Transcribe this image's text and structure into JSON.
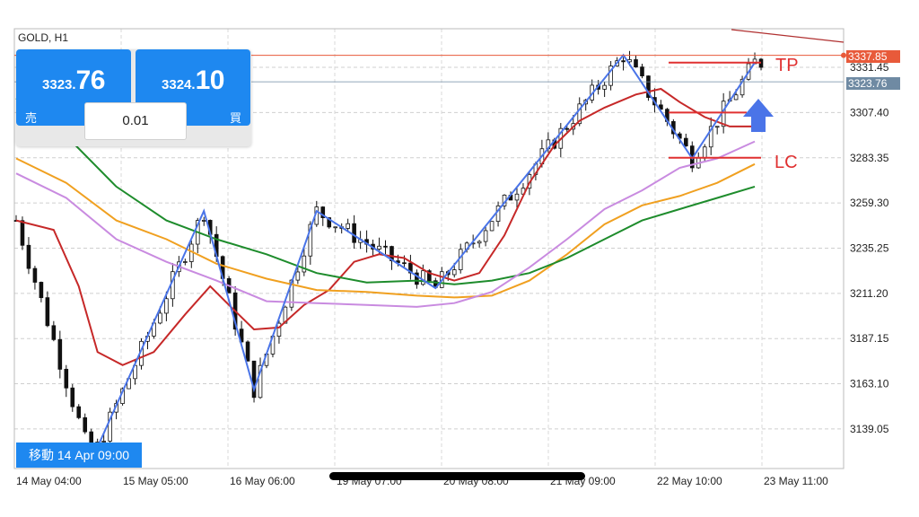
{
  "symbol_label": "GOLD, H1",
  "trade_panel": {
    "sell": {
      "price_prefix": "3323.",
      "price_big": "76",
      "label": "売"
    },
    "buy": {
      "price_prefix": "3324.",
      "price_big": "10",
      "label": "買"
    },
    "lot_value": "0.01"
  },
  "move_label": "移動 14 Apr 09:00",
  "annotations": {
    "tp": "TP",
    "lc": "LC"
  },
  "price_tags": {
    "top": {
      "text": "3337.85",
      "color": "#e85a3a"
    },
    "current": {
      "text": "3323.76",
      "color": "#6f8aa3"
    }
  },
  "colors": {
    "up_candle": "#ffffff",
    "down_candle": "#111111",
    "ma_red": "#c62828",
    "ma_orange": "#f0a020",
    "ma_green": "#1e8c2c",
    "ma_purple": "#c98be0",
    "zigzag": "#4a74e8",
    "accent": "#1e88f0",
    "annotation": "#e03030"
  },
  "chart_data": {
    "type": "candlestick",
    "ylim": [
      3118,
      3352
    ],
    "y_ticks": [
      "3331.45",
      "3307.40",
      "3283.35",
      "3259.30",
      "3235.25",
      "3211.20",
      "3187.15",
      "3163.10",
      "3139.05"
    ],
    "x_ticks": [
      "14 May 04:00",
      "15 May 05:00",
      "16 May 06:00",
      "19 May 07:00",
      "20 May 08:00",
      "21 May 09:00",
      "22 May 10:00",
      "23 May 11:00"
    ],
    "levels": {
      "top_price": 3337.85,
      "current_price": 3323.76,
      "tp": 3334,
      "entry": 3307.4,
      "lc": 3283.35
    },
    "zigzag": [
      {
        "bar": 12,
        "price": 3122
      },
      {
        "bar": 30,
        "price": 3255
      },
      {
        "bar": 38,
        "price": 3160
      },
      {
        "bar": 48,
        "price": 3255
      },
      {
        "bar": 67,
        "price": 3214
      },
      {
        "bar": 97,
        "price": 3338
      },
      {
        "bar": 108,
        "price": 3283
      },
      {
        "bar": 118,
        "price": 3334
      }
    ],
    "ma_series": [
      {
        "key": "ma_red",
        "points": [
          [
            0,
            3250
          ],
          [
            6,
            3245
          ],
          [
            10,
            3215
          ],
          [
            13,
            3180
          ],
          [
            17,
            3173
          ],
          [
            22,
            3180
          ],
          [
            27,
            3200
          ],
          [
            31,
            3215
          ],
          [
            34,
            3205
          ],
          [
            38,
            3192
          ],
          [
            42,
            3193
          ],
          [
            46,
            3205
          ],
          [
            50,
            3213
          ],
          [
            54,
            3228
          ],
          [
            58,
            3232
          ],
          [
            62,
            3230
          ],
          [
            66,
            3222
          ],
          [
            70,
            3218
          ],
          [
            74,
            3222
          ],
          [
            78,
            3242
          ],
          [
            82,
            3270
          ],
          [
            86,
            3290
          ],
          [
            90,
            3303
          ],
          [
            94,
            3310
          ],
          [
            99,
            3317
          ],
          [
            103,
            3320
          ],
          [
            106,
            3313
          ],
          [
            110,
            3305
          ],
          [
            114,
            3300
          ],
          [
            118,
            3300
          ]
        ]
      },
      {
        "key": "ma_orange",
        "points": [
          [
            0,
            3283
          ],
          [
            8,
            3270
          ],
          [
            16,
            3250
          ],
          [
            24,
            3240
          ],
          [
            32,
            3227
          ],
          [
            40,
            3219
          ],
          [
            48,
            3213
          ],
          [
            56,
            3212
          ],
          [
            64,
            3210
          ],
          [
            70,
            3209
          ],
          [
            76,
            3210
          ],
          [
            82,
            3218
          ],
          [
            88,
            3232
          ],
          [
            94,
            3248
          ],
          [
            100,
            3258
          ],
          [
            106,
            3263
          ],
          [
            112,
            3270
          ],
          [
            118,
            3280
          ]
        ]
      },
      {
        "key": "ma_green",
        "points": [
          [
            0,
            3315
          ],
          [
            8,
            3295
          ],
          [
            16,
            3268
          ],
          [
            24,
            3250
          ],
          [
            32,
            3240
          ],
          [
            40,
            3232
          ],
          [
            48,
            3222
          ],
          [
            56,
            3217
          ],
          [
            64,
            3218
          ],
          [
            70,
            3216
          ],
          [
            76,
            3218
          ],
          [
            82,
            3222
          ],
          [
            88,
            3230
          ],
          [
            94,
            3240
          ],
          [
            100,
            3250
          ],
          [
            106,
            3256
          ],
          [
            112,
            3262
          ],
          [
            118,
            3268
          ]
        ]
      },
      {
        "key": "ma_purple",
        "points": [
          [
            0,
            3275
          ],
          [
            8,
            3262
          ],
          [
            16,
            3240
          ],
          [
            24,
            3228
          ],
          [
            32,
            3218
          ],
          [
            40,
            3207
          ],
          [
            48,
            3206
          ],
          [
            56,
            3205
          ],
          [
            64,
            3204
          ],
          [
            70,
            3206
          ],
          [
            76,
            3212
          ],
          [
            82,
            3225
          ],
          [
            88,
            3240
          ],
          [
            94,
            3256
          ],
          [
            100,
            3266
          ],
          [
            106,
            3278
          ],
          [
            112,
            3283
          ],
          [
            118,
            3292
          ]
        ]
      }
    ]
  }
}
